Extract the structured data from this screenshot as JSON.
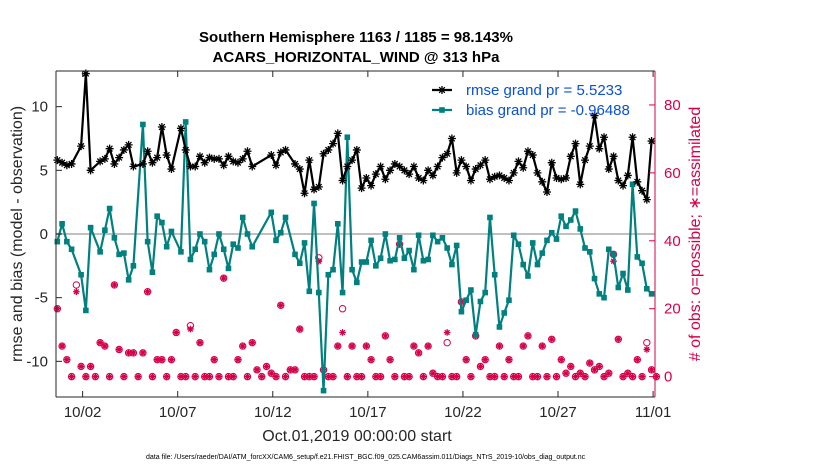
{
  "chart_data": {
    "type": "line",
    "title": "Southern Hemisphere 1163 / 1185 = 98.143%",
    "subtitle": "ACARS_HORIZONTAL_WIND @ 313 hPa",
    "xlabel": "Oct.01,2019 00:00:00 start",
    "ylabel": "rmse and bias (model - observation)",
    "ylabel_right": "# of obs: o=possible; ∗=assimilated",
    "footnote": "data file: /Users/raeder/DAI/ATM_forcXX/CAM6_setup/f.e21.FHIST_BGC.f09_025.CAM6assim.011/Diags_NTrS_2019-10/obs_diag_output.nc",
    "xlim": [
      0.6,
      32.1
    ],
    "ylim": [
      -12.8,
      12.8
    ],
    "ylim_right": [
      -6,
      90
    ],
    "x_ticks": [
      2,
      7,
      12,
      17,
      22,
      27,
      32
    ],
    "x_tick_labels": [
      "10/02",
      "10/07",
      "10/12",
      "10/17",
      "10/22",
      "10/27",
      "11/01"
    ],
    "y_ticks": [
      -10,
      -5,
      0,
      5,
      10
    ],
    "y_ticks_right": [
      0,
      20,
      40,
      60,
      80
    ],
    "legend_position": "top-right",
    "colors": {
      "rmse": "#000000",
      "bias": "#00807f",
      "obs": "#d6004a",
      "zero_line": "#bfbfbf"
    },
    "series": [
      {
        "name": "rmse grand pr = 5.5233",
        "x": [
          0.67,
          0.92,
          1.17,
          1.42,
          1.92,
          2.17,
          2.42,
          2.92,
          3.17,
          3.42,
          3.67,
          3.92,
          4.17,
          4.42,
          4.67,
          5.17,
          5.42,
          5.67,
          5.92,
          6.17,
          6.42,
          6.67,
          7.17,
          7.42,
          7.67,
          7.92,
          8.17,
          8.42,
          8.67,
          8.92,
          9.17,
          9.42,
          9.67,
          9.92,
          10.17,
          10.42,
          10.67,
          10.92,
          11.92,
          12.17,
          12.42,
          12.67,
          13.17,
          13.42,
          13.67,
          13.92,
          14.17,
          14.42,
          14.67,
          14.92,
          15.17,
          15.42,
          15.67,
          15.92,
          16.17,
          16.42,
          16.67,
          16.92,
          17.17,
          17.42,
          17.67,
          17.92,
          18.17,
          18.42,
          18.67,
          18.92,
          19.17,
          19.42,
          19.67,
          19.92,
          20.17,
          20.42,
          20.67,
          20.92,
          21.17,
          21.42,
          21.67,
          21.92,
          22.17,
          22.42,
          22.67,
          22.92,
          23.17,
          23.42,
          23.67,
          23.92,
          24.17,
          24.42,
          24.67,
          24.92,
          25.17,
          25.42,
          25.67,
          25.92,
          26.17,
          26.42,
          26.67,
          26.92,
          27.17,
          27.42,
          27.67,
          27.92,
          28.17,
          28.42,
          28.67,
          28.92,
          29.17,
          29.42,
          29.67,
          29.92,
          30.17,
          30.42,
          30.67,
          30.92,
          31.17,
          31.42,
          31.67,
          31.92
        ],
        "values": [
          5.8,
          5.6,
          5.4,
          5.5,
          6.9,
          12.6,
          5.0,
          5.7,
          5.9,
          6.7,
          5.5,
          6.0,
          6.6,
          7.0,
          5.3,
          5.5,
          6.5,
          5.6,
          6.0,
          8.4,
          6.2,
          5.1,
          8.3,
          6.6,
          5.3,
          5.3,
          6.1,
          5.6,
          6.0,
          5.9,
          5.9,
          5.4,
          6.1,
          5.7,
          5.6,
          5.9,
          6.5,
          5.3,
          6.2,
          5.4,
          6.4,
          6.6,
          5.5,
          5.1,
          3.2,
          5.8,
          3.5,
          3.7,
          6.3,
          6.6,
          7.1,
          7.9,
          4.2,
          5.3,
          5.8,
          6.6,
          3.6,
          4.4,
          3.8,
          4.7,
          5.3,
          4.3,
          5.0,
          5.5,
          5.3,
          5.0,
          4.7,
          5.3,
          4.4,
          4.2,
          5.0,
          4.6,
          5.3,
          6.0,
          6.3,
          7.5,
          4.8,
          5.8,
          5.3,
          4.2,
          5.1,
          5.4,
          5.8,
          4.3,
          4.5,
          4.6,
          4.4,
          4.2,
          4.8,
          5.7,
          5.2,
          6.5,
          6.2,
          4.8,
          4.1,
          3.3,
          5.6,
          4.4,
          4.3,
          4.4,
          6.1,
          7.1,
          3.9,
          5.8,
          6.9,
          9.3,
          6.7,
          7.6,
          5.1,
          6.1,
          4.2,
          3.8,
          4.6,
          7.6,
          4.1,
          3.4,
          2.7,
          7.3
        ]
      },
      {
        "name": "bias grand pr = -0.96488",
        "x": [
          0.67,
          0.92,
          1.17,
          1.42,
          1.92,
          2.17,
          2.42,
          2.92,
          3.17,
          3.42,
          3.67,
          3.92,
          4.17,
          4.42,
          4.67,
          5.17,
          5.42,
          5.67,
          5.92,
          6.17,
          6.42,
          6.67,
          7.17,
          7.42,
          7.67,
          7.92,
          8.17,
          8.42,
          8.67,
          8.92,
          9.17,
          9.42,
          9.67,
          9.92,
          10.17,
          10.42,
          10.67,
          10.92,
          11.92,
          12.17,
          12.42,
          12.67,
          13.17,
          13.42,
          13.67,
          13.92,
          14.17,
          14.42,
          14.67,
          14.92,
          15.17,
          15.42,
          15.67,
          15.92,
          16.17,
          16.42,
          16.67,
          16.92,
          17.17,
          17.42,
          17.67,
          17.92,
          18.17,
          18.42,
          18.67,
          18.92,
          19.17,
          19.42,
          19.67,
          19.92,
          20.17,
          20.42,
          20.67,
          20.92,
          21.17,
          21.42,
          21.67,
          21.92,
          22.17,
          22.42,
          22.67,
          22.92,
          23.17,
          23.42,
          23.67,
          23.92,
          24.17,
          24.42,
          24.67,
          24.92,
          25.17,
          25.42,
          25.67,
          25.92,
          26.17,
          26.42,
          26.67,
          26.92,
          27.17,
          27.42,
          27.67,
          27.92,
          28.17,
          28.42,
          28.67,
          28.92,
          29.17,
          29.42,
          29.67,
          29.92,
          30.17,
          30.42,
          30.67,
          30.92,
          31.17,
          31.42,
          31.67,
          31.92
        ],
        "values": [
          -0.6,
          0.8,
          -0.6,
          -1.2,
          -3.2,
          -6.0,
          0.5,
          -1.4,
          0.3,
          2.0,
          -0.3,
          -1.6,
          -1.5,
          -3.6,
          -2.5,
          8.6,
          -0.6,
          -3.0,
          1.4,
          0.9,
          -1.0,
          0.2,
          -1.4,
          8.8,
          -2.0,
          -1.2,
          0.0,
          -0.6,
          -2.8,
          -1.6,
          0.0,
          -1.2,
          -2.7,
          -0.8,
          -1.1,
          1.3,
          0.0,
          -1.0,
          1.7,
          -0.5,
          0.1,
          1.3,
          -1.6,
          -2.3,
          -0.7,
          -4.5,
          2.4,
          -4.6,
          -12.3,
          -3.2,
          -2.8,
          0.8,
          -4.6,
          7.6,
          -2.8,
          -3.8,
          -2.2,
          -2.2,
          -0.5,
          -2.5,
          -1.9,
          0.0,
          -2.1,
          -2.0,
          -0.3,
          -1.9,
          -1.3,
          -2.8,
          -0.1,
          -2.1,
          -2.0,
          -0.1,
          -0.6,
          -0.3,
          -1.1,
          -2.4,
          -0.9,
          -6.1,
          -5.2,
          -4.4,
          -7.9,
          -5.3,
          -4.6,
          1.3,
          -3.2,
          -7.3,
          -6.2,
          -5.2,
          -0.1,
          -0.8,
          -2.4,
          -3.3,
          -0.7,
          -2.4,
          -1.5,
          -0.5,
          0.1,
          -0.4,
          1.4,
          0.6,
          1.1,
          1.8,
          0.4,
          -1.1,
          -1.4,
          -3.5,
          -4.7,
          -5.0,
          -1.2,
          -1.6,
          -4.2,
          -3.1,
          -4.4,
          3.9,
          -1.8,
          -2.3,
          -4.3,
          -4.7
        ]
      },
      {
        "name": "# of obs: o=possible",
        "axis": "right",
        "x": [
          0.67,
          0.92,
          1.17,
          1.42,
          1.67,
          1.92,
          2.17,
          2.42,
          2.67,
          2.92,
          3.17,
          3.42,
          3.67,
          3.92,
          4.17,
          4.42,
          4.67,
          4.92,
          5.17,
          5.42,
          5.67,
          5.92,
          6.17,
          6.42,
          6.67,
          6.92,
          7.17,
          7.42,
          7.67,
          7.92,
          8.17,
          8.42,
          8.67,
          8.92,
          9.17,
          9.42,
          9.67,
          9.92,
          10.17,
          10.42,
          10.67,
          10.92,
          11.17,
          11.42,
          11.67,
          11.92,
          12.17,
          12.42,
          12.67,
          12.92,
          13.17,
          13.42,
          13.67,
          13.92,
          14.17,
          14.42,
          14.67,
          14.92,
          15.17,
          15.42,
          15.67,
          15.92,
          16.17,
          16.42,
          16.67,
          16.92,
          17.17,
          17.42,
          17.67,
          17.92,
          18.17,
          18.42,
          18.67,
          18.92,
          19.17,
          19.42,
          19.67,
          19.92,
          20.17,
          20.42,
          20.67,
          20.92,
          21.17,
          21.42,
          21.67,
          21.92,
          22.17,
          22.42,
          22.67,
          22.92,
          23.17,
          23.42,
          23.67,
          23.92,
          24.17,
          24.42,
          24.67,
          24.92,
          25.17,
          25.42,
          25.67,
          25.92,
          26.17,
          26.42,
          26.67,
          26.92,
          27.17,
          27.42,
          27.67,
          27.92,
          28.17,
          28.42,
          28.67,
          28.92,
          29.17,
          29.42,
          29.67,
          29.92,
          30.17,
          30.42,
          30.67,
          30.92,
          31.17,
          31.42,
          31.67,
          31.92,
          32.17
        ],
        "values": [
          20,
          9,
          5,
          0,
          27,
          3,
          0,
          3,
          0,
          10,
          9,
          0,
          27,
          8,
          0,
          7,
          7,
          0,
          7,
          25,
          0,
          5,
          5,
          0,
          5,
          13,
          0,
          0,
          15,
          0,
          10,
          0,
          0,
          5,
          0,
          29,
          0,
          0,
          5,
          9,
          0,
          10,
          2,
          0,
          3,
          1,
          0,
          21,
          0,
          2,
          2,
          14,
          0,
          0,
          0,
          35,
          2,
          0,
          0,
          9,
          20,
          0,
          9,
          0,
          0,
          9,
          5,
          0,
          0,
          12,
          5,
          0,
          39,
          0,
          0,
          9,
          7,
          0,
          9,
          1,
          0,
          0,
          10,
          0,
          0,
          22,
          5,
          0,
          12,
          3,
          5,
          0,
          0,
          9,
          0,
          5,
          0,
          0,
          9,
          12,
          0,
          0,
          9,
          0,
          11,
          0,
          5,
          1,
          3,
          0,
          1,
          0,
          4,
          2,
          3,
          0,
          1,
          36,
          11,
          0,
          1,
          0,
          5,
          0,
          10,
          2,
          0
        ]
      },
      {
        "name": "# of obs: ∗=assimilated",
        "axis": "right",
        "x": [
          0.67,
          0.92,
          1.17,
          1.42,
          1.67,
          1.92,
          2.17,
          2.42,
          2.67,
          2.92,
          3.17,
          3.42,
          3.67,
          3.92,
          4.17,
          4.42,
          4.67,
          4.92,
          5.17,
          5.42,
          5.67,
          5.92,
          6.17,
          6.42,
          6.67,
          6.92,
          7.17,
          7.42,
          7.67,
          7.92,
          8.17,
          8.42,
          8.67,
          8.92,
          9.17,
          9.42,
          9.67,
          9.92,
          10.17,
          10.42,
          10.67,
          10.92,
          11.17,
          11.42,
          11.67,
          11.92,
          12.17,
          12.42,
          12.67,
          12.92,
          13.17,
          13.42,
          13.67,
          13.92,
          14.17,
          14.42,
          14.67,
          14.92,
          15.17,
          15.42,
          15.67,
          15.92,
          16.17,
          16.42,
          16.67,
          16.92,
          17.17,
          17.42,
          17.67,
          17.92,
          18.17,
          18.42,
          18.67,
          18.92,
          19.17,
          19.42,
          19.67,
          19.92,
          20.17,
          20.42,
          20.67,
          20.92,
          21.17,
          21.42,
          21.67,
          21.92,
          22.17,
          22.42,
          22.67,
          22.92,
          23.17,
          23.42,
          23.67,
          23.92,
          24.17,
          24.42,
          24.67,
          24.92,
          25.17,
          25.42,
          25.67,
          25.92,
          26.17,
          26.42,
          26.67,
          26.92,
          27.17,
          27.42,
          27.67,
          27.92,
          28.17,
          28.42,
          28.67,
          28.92,
          29.17,
          29.42,
          29.67,
          29.92,
          30.17,
          30.42,
          30.67,
          30.92,
          31.17,
          31.42,
          31.67,
          31.92,
          32.17
        ],
        "values": [
          20,
          9,
          5,
          0,
          25,
          3,
          0,
          3,
          0,
          10,
          9,
          0,
          27,
          8,
          0,
          7,
          7,
          0,
          7,
          25,
          0,
          5,
          5,
          0,
          5,
          13,
          0,
          0,
          14,
          0,
          10,
          0,
          0,
          5,
          0,
          29,
          0,
          0,
          5,
          9,
          0,
          10,
          2,
          0,
          3,
          1,
          0,
          21,
          0,
          2,
          2,
          14,
          0,
          0,
          0,
          34,
          2,
          0,
          0,
          9,
          13,
          0,
          9,
          0,
          0,
          9,
          5,
          0,
          0,
          12,
          5,
          0,
          39,
          0,
          0,
          9,
          7,
          0,
          9,
          1,
          0,
          0,
          13,
          0,
          0,
          22,
          5,
          0,
          12,
          3,
          5,
          0,
          0,
          9,
          0,
          5,
          0,
          0,
          9,
          12,
          0,
          0,
          9,
          0,
          11,
          0,
          5,
          1,
          3,
          0,
          1,
          0,
          4,
          2,
          3,
          0,
          1,
          34,
          11,
          0,
          1,
          0,
          5,
          0,
          8,
          2,
          0
        ]
      }
    ]
  }
}
